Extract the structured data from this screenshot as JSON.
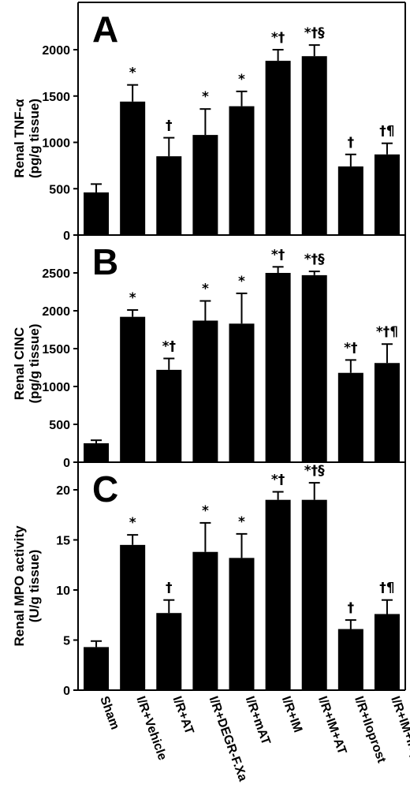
{
  "chart_data": {
    "type": "bar",
    "categories": [
      "Sham",
      "I/R+Vehicle",
      "I/R+AT",
      "I/R+DEGR-F.Xa",
      "I/R+mAT",
      "I/R+IM",
      "I/R+IM+AT",
      "I/R+Iloprost",
      "I/R+IM+Iloprost"
    ],
    "panels": [
      {
        "label": "A",
        "ylabel_lines": [
          "Renal TNF-α",
          "(pg/g tissue)"
        ],
        "ylim": [
          0,
          2500
        ],
        "yticks": [
          0,
          500,
          1000,
          1500,
          2000
        ],
        "values": [
          460,
          1440,
          850,
          1080,
          1390,
          1880,
          1930,
          740,
          870
        ],
        "errors": [
          90,
          180,
          200,
          280,
          160,
          120,
          120,
          130,
          120
        ],
        "marks": [
          "",
          "*",
          "†",
          "*",
          "*",
          "*†",
          "*†§",
          "†",
          "†¶"
        ]
      },
      {
        "label": "B",
        "ylabel_lines": [
          "Renal CINC",
          "(pg/g tissue)"
        ],
        "ylim": [
          0,
          2800
        ],
        "yticks": [
          0,
          500,
          1000,
          1500,
          2000,
          2500
        ],
        "values": [
          250,
          1920,
          1220,
          1870,
          1830,
          2500,
          2470,
          1180,
          1310
        ],
        "errors": [
          40,
          90,
          150,
          260,
          400,
          80,
          50,
          170,
          250
        ],
        "marks": [
          "",
          "*",
          "*†",
          "*",
          "*",
          "*†",
          "*†§",
          "*†",
          "*†¶"
        ]
      },
      {
        "label": "C",
        "ylabel_lines": [
          "Renal MPO activity",
          "(U/g tissue)"
        ],
        "ylim": [
          0,
          24
        ],
        "yticks": [
          0,
          5,
          10,
          15,
          20
        ],
        "values": [
          4.3,
          14.5,
          7.7,
          13.8,
          13.2,
          19.0,
          19.0,
          6.1,
          7.6
        ],
        "errors": [
          0.6,
          1.0,
          1.3,
          2.9,
          2.4,
          0.8,
          1.7,
          0.9,
          1.4
        ],
        "marks": [
          "",
          "*",
          "†",
          "*",
          "*",
          "*†",
          "*†§",
          "†",
          "†¶"
        ]
      }
    ]
  }
}
